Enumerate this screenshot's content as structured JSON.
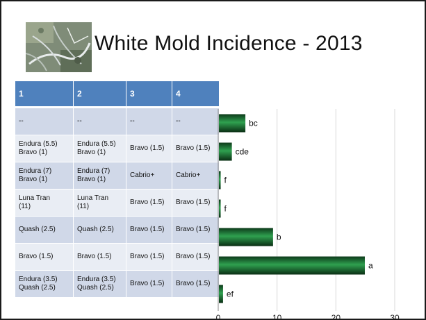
{
  "slide": {
    "title": "White Mold Incidence - 2013"
  },
  "table": {
    "headers": [
      "1",
      "2",
      "3",
      "4"
    ],
    "rows": [
      [
        "--",
        "--",
        "--",
        "--"
      ],
      [
        "Endura (5.5)\nBravo (1)",
        "Endura (5.5)\nBravo (1)",
        "Bravo (1.5)",
        "Bravo (1.5)"
      ],
      [
        "Endura (7)\nBravo (1)",
        "Endura (7)\nBravo (1)",
        "Cabrio+",
        "Cabrio+"
      ],
      [
        "Luna Tran\n(11)",
        "Luna Tran\n(11)",
        "Bravo (1.5)",
        "Bravo (1.5)"
      ],
      [
        "Quash (2.5)",
        "Quash (2.5)",
        "Bravo (1.5)",
        "Bravo (1.5)"
      ],
      [
        "Bravo (1.5)",
        "Bravo (1.5)",
        "Bravo (1.5)",
        "Bravo (1.5)"
      ],
      [
        "Endura (3.5)\nQuash (2.5)",
        "Endura (3.5)\nQuash (2.5)",
        "Bravo (1.5)",
        "Bravo (1.5)"
      ]
    ]
  },
  "chart_data": {
    "type": "bar",
    "orientation": "horizontal",
    "values": [
      4.5,
      2.2,
      0.3,
      0.3,
      9.2,
      24.8,
      0.7
    ],
    "data_labels": [
      "bc",
      "cde",
      "f",
      "f",
      "b",
      "a",
      "ef"
    ],
    "x_ticks": [
      "0",
      "10",
      "20",
      "30"
    ],
    "xlim": [
      0,
      30
    ],
    "grid": true,
    "bar_color": "#1e7a3c"
  }
}
